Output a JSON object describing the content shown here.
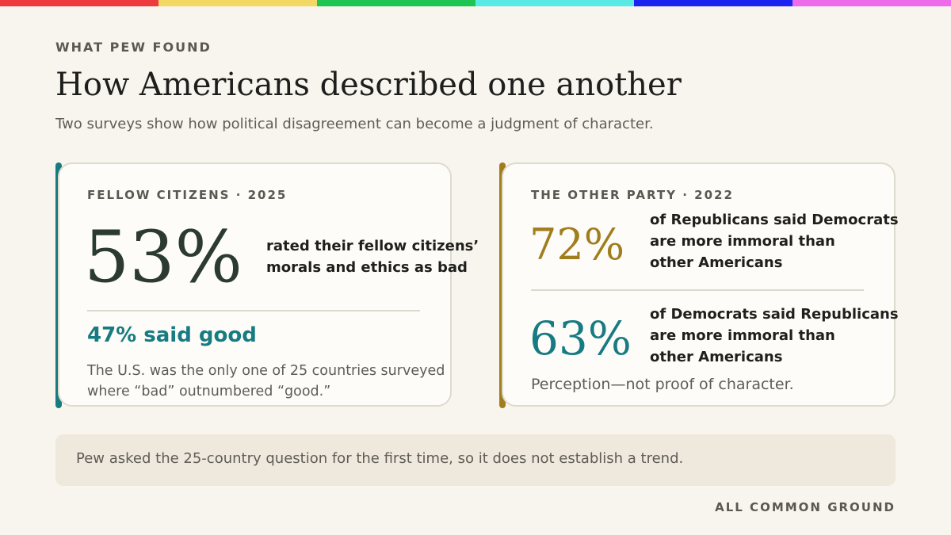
{
  "colors": {
    "bar": [
      "#ec3a3f",
      "#f4d864",
      "#1ec552",
      "#5aeae6",
      "#1c24f0",
      "#ee6cec"
    ],
    "teal": "#177b82",
    "gold": "#a07d1d",
    "dark": "#2b3a32"
  },
  "header": {
    "eyebrow": "WHAT PEW FOUND",
    "title": "How Americans described one another",
    "subtitle": "Two surveys show how political disagreement can become a judgment of character."
  },
  "left_card": {
    "label": "FELLOW CITIZENS · 2025",
    "stat": "53%",
    "stat_desc_line1": "rated their fellow citizens’",
    "stat_desc_line2": "morals and ethics as bad",
    "good": "47% said good",
    "note_line1": "The U.S. was the only one of 25 countries surveyed",
    "note_line2": "where “bad” outnumbered “good.”"
  },
  "right_card": {
    "label": "THE OTHER PARTY · 2022",
    "stat1": "72%",
    "stat1_line1": "of Republicans said Democrats",
    "stat1_line2": "are more immoral than",
    "stat1_line3": "other Americans",
    "stat2": "63%",
    "stat2_line1": "of Democrats said Republicans",
    "stat2_line2": "are more immoral than",
    "stat2_line3": "other Americans",
    "note": "Perception—not proof of character."
  },
  "footnote": "Pew asked the 25-country question for the first time, so it does not establish a trend.",
  "brand": "ALL COMMON GROUND"
}
